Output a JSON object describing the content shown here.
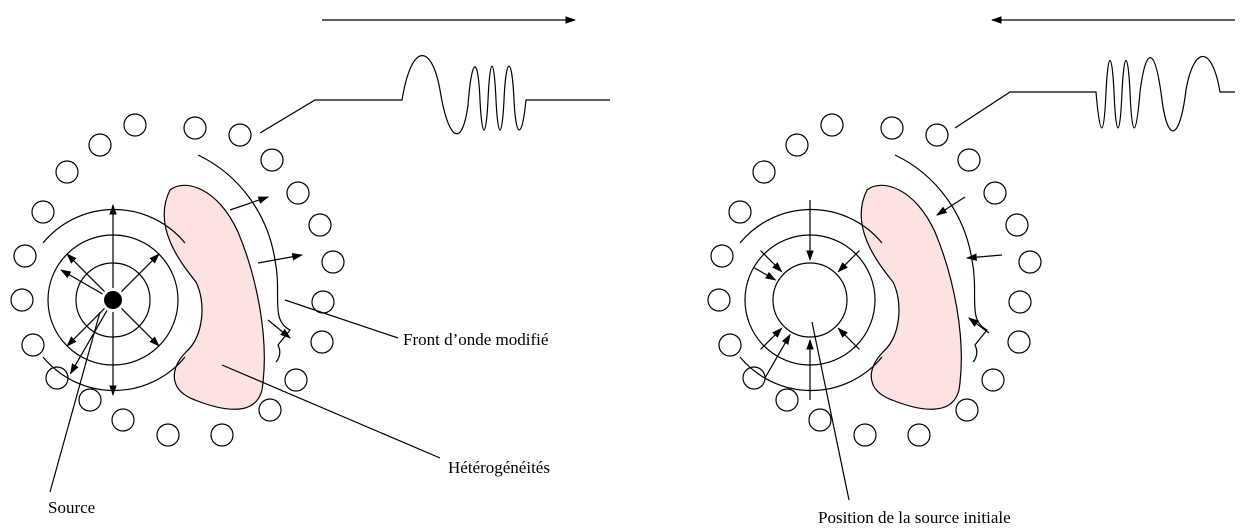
{
  "labels": {
    "wavefront": "Front d’onde modifié",
    "heterogeneities": "Hétérogénéités",
    "source": "Source",
    "initial_source": "Position de la source initiale"
  }
}
